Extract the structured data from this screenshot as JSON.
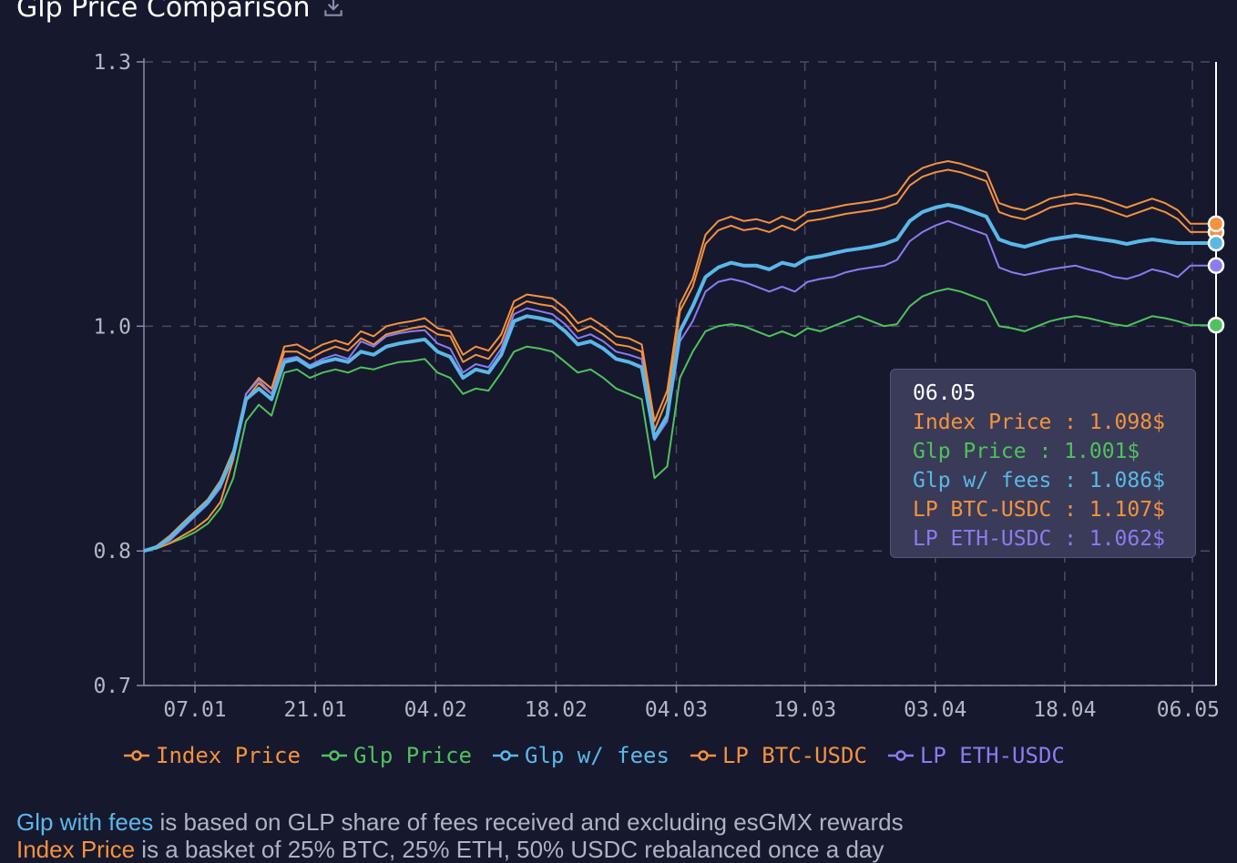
{
  "header": {
    "title": "Glp Price Comparison",
    "download_icon": "download-icon"
  },
  "chart_data": {
    "type": "line",
    "x_ticks": [
      "07.01",
      "21.01",
      "04.02",
      "18.02",
      "04.03",
      "19.03",
      "03.04",
      "18.04",
      "06.05"
    ],
    "y_ticks": [
      "1.3",
      "1.0",
      "0.8",
      "0.7"
    ],
    "y_tick_values": [
      1.3,
      1.0,
      0.8,
      0.7
    ],
    "ylim": [
      0.7,
      1.3
    ],
    "yscale": "log",
    "grid": true,
    "legend_placement": "bottom",
    "x_index": [
      0,
      14,
      28,
      42,
      56,
      70,
      84,
      98,
      112,
      126,
      140,
      154,
      168,
      182,
      196,
      210,
      224,
      238,
      252,
      266,
      280,
      294,
      308,
      322,
      336,
      350,
      364,
      378,
      392,
      406,
      420,
      434,
      448,
      462,
      476,
      490,
      504,
      518,
      532,
      546,
      560,
      574,
      588,
      602,
      616,
      630,
      644,
      658,
      672,
      686,
      700,
      714,
      728,
      742,
      756,
      770,
      784,
      798,
      812,
      826,
      840,
      854,
      868,
      882,
      896,
      910,
      924,
      938,
      952,
      966,
      980,
      994,
      1008,
      1022,
      1036,
      1050,
      1064,
      1078,
      1092,
      1106,
      1120,
      1134,
      1148,
      1162,
      1176
    ],
    "x_tick_index": [
      56,
      188,
      320,
      452,
      584,
      725,
      868,
      1010,
      1150
    ],
    "series": [
      {
        "name": "Index Price",
        "color": "#f5923e",
        "values": [
          0.8,
          0.802,
          0.806,
          0.812,
          0.818,
          0.826,
          0.84,
          0.876,
          0.93,
          0.945,
          0.935,
          0.975,
          0.975,
          0.968,
          0.975,
          0.98,
          0.976,
          0.988,
          0.982,
          0.992,
          0.995,
          0.998,
          1.0,
          0.992,
          0.99,
          0.965,
          0.972,
          0.968,
          0.984,
          1.018,
          1.025,
          1.022,
          1.02,
          1.01,
          0.995,
          1.0,
          0.992,
          0.982,
          0.98,
          0.975,
          0.902,
          0.93,
          1.015,
          1.04,
          1.085,
          1.1,
          1.105,
          1.1,
          1.102,
          1.098,
          1.105,
          1.1,
          1.11,
          1.112,
          1.115,
          1.118,
          1.12,
          1.122,
          1.125,
          1.13,
          1.15,
          1.16,
          1.165,
          1.168,
          1.165,
          1.16,
          1.155,
          1.12,
          1.115,
          1.112,
          1.118,
          1.125,
          1.128,
          1.13,
          1.128,
          1.125,
          1.12,
          1.115,
          1.12,
          1.125,
          1.12,
          1.112,
          1.098,
          1.098,
          1.098
        ]
      },
      {
        "name": "Glp Price",
        "color": "#4fc25c",
        "values": [
          0.8,
          0.802,
          0.806,
          0.81,
          0.815,
          0.822,
          0.835,
          0.86,
          0.91,
          0.925,
          0.915,
          0.955,
          0.958,
          0.95,
          0.955,
          0.958,
          0.955,
          0.96,
          0.958,
          0.962,
          0.965,
          0.966,
          0.968,
          0.955,
          0.95,
          0.935,
          0.94,
          0.938,
          0.955,
          0.975,
          0.98,
          0.978,
          0.975,
          0.965,
          0.955,
          0.958,
          0.95,
          0.94,
          0.935,
          0.93,
          0.86,
          0.87,
          0.95,
          0.975,
          0.995,
          1.0,
          1.002,
          1.0,
          0.995,
          0.99,
          0.995,
          0.99,
          0.998,
          0.995,
          1.0,
          1.005,
          1.01,
          1.005,
          1.0,
          1.002,
          1.02,
          1.03,
          1.035,
          1.038,
          1.035,
          1.03,
          1.025,
          1.0,
          0.998,
          0.995,
          1.0,
          1.005,
          1.008,
          1.01,
          1.008,
          1.005,
          1.002,
          1.0,
          1.005,
          1.01,
          1.008,
          1.005,
          1.001,
          1.001,
          1.001
        ]
      },
      {
        "name": "Glp w/ fees",
        "color": "#5ab8e8",
        "values": [
          0.8,
          0.803,
          0.81,
          0.82,
          0.83,
          0.84,
          0.855,
          0.88,
          0.93,
          0.94,
          0.93,
          0.965,
          0.968,
          0.96,
          0.965,
          0.968,
          0.965,
          0.975,
          0.972,
          0.98,
          0.983,
          0.985,
          0.987,
          0.975,
          0.97,
          0.95,
          0.958,
          0.955,
          0.972,
          1.005,
          1.01,
          1.008,
          1.005,
          0.995,
          0.982,
          0.985,
          0.978,
          0.968,
          0.965,
          0.96,
          0.895,
          0.915,
          0.995,
          1.02,
          1.05,
          1.06,
          1.065,
          1.062,
          1.062,
          1.058,
          1.065,
          1.062,
          1.07,
          1.072,
          1.075,
          1.078,
          1.08,
          1.082,
          1.085,
          1.09,
          1.11,
          1.12,
          1.125,
          1.128,
          1.125,
          1.12,
          1.115,
          1.09,
          1.085,
          1.082,
          1.086,
          1.09,
          1.092,
          1.094,
          1.092,
          1.09,
          1.088,
          1.085,
          1.088,
          1.09,
          1.088,
          1.086,
          1.086,
          1.086,
          1.086
        ]
      },
      {
        "name": "LP BTC-USDC",
        "color": "#f5923e",
        "values": [
          0.8,
          0.804,
          0.812,
          0.822,
          0.832,
          0.842,
          0.858,
          0.884,
          0.935,
          0.95,
          0.94,
          0.98,
          0.982,
          0.975,
          0.982,
          0.986,
          0.982,
          0.995,
          0.99,
          1.0,
          1.003,
          1.005,
          1.008,
          0.998,
          0.995,
          0.972,
          0.98,
          0.976,
          0.992,
          1.025,
          1.032,
          1.03,
          1.028,
          1.018,
          1.003,
          1.008,
          1.0,
          0.99,
          0.988,
          0.982,
          0.91,
          0.938,
          1.022,
          1.048,
          1.095,
          1.11,
          1.115,
          1.11,
          1.112,
          1.108,
          1.115,
          1.11,
          1.12,
          1.122,
          1.125,
          1.128,
          1.13,
          1.132,
          1.135,
          1.14,
          1.16,
          1.17,
          1.175,
          1.178,
          1.175,
          1.17,
          1.165,
          1.13,
          1.125,
          1.122,
          1.128,
          1.135,
          1.138,
          1.14,
          1.138,
          1.135,
          1.13,
          1.125,
          1.13,
          1.135,
          1.13,
          1.122,
          1.107,
          1.107,
          1.107
        ]
      },
      {
        "name": "LP ETH-USDC",
        "color": "#8b7cf0",
        "values": [
          0.8,
          0.803,
          0.808,
          0.818,
          0.828,
          0.838,
          0.852,
          0.878,
          0.935,
          0.948,
          0.935,
          0.968,
          0.97,
          0.962,
          0.968,
          0.972,
          0.968,
          0.985,
          0.98,
          0.99,
          0.993,
          0.995,
          0.996,
          0.983,
          0.978,
          0.955,
          0.963,
          0.96,
          0.978,
          1.012,
          1.018,
          1.015,
          1.012,
          1.002,
          0.988,
          0.992,
          0.985,
          0.975,
          0.972,
          0.968,
          0.893,
          0.91,
          0.985,
          1.005,
          1.035,
          1.045,
          1.048,
          1.045,
          1.04,
          1.035,
          1.04,
          1.035,
          1.045,
          1.048,
          1.05,
          1.055,
          1.058,
          1.06,
          1.062,
          1.068,
          1.088,
          1.098,
          1.105,
          1.11,
          1.105,
          1.1,
          1.095,
          1.06,
          1.055,
          1.052,
          1.055,
          1.058,
          1.06,
          1.062,
          1.058,
          1.055,
          1.05,
          1.048,
          1.052,
          1.058,
          1.055,
          1.05,
          1.062,
          1.062,
          1.062
        ]
      }
    ]
  },
  "tooltip": {
    "date": "06.05",
    "rows": [
      {
        "label": "Index Price : 1.098$",
        "color": "#f5923e"
      },
      {
        "label": "Glp Price : 1.001$",
        "color": "#4fc25c"
      },
      {
        "label": "Glp w/ fees : 1.086$",
        "color": "#5ab8e8"
      },
      {
        "label": "LP BTC-USDC : 1.107$",
        "color": "#f5923e"
      },
      {
        "label": "LP ETH-USDC : 1.062$",
        "color": "#8b7cf0"
      }
    ]
  },
  "legend": [
    {
      "label": "Index Price",
      "color": "#f5923e"
    },
    {
      "label": "Glp Price",
      "color": "#4fc25c"
    },
    {
      "label": "Glp w/ fees",
      "color": "#5ab8e8"
    },
    {
      "label": "LP BTC-USDC",
      "color": "#f5923e"
    },
    {
      "label": "LP ETH-USDC",
      "color": "#8b7cf0"
    }
  ],
  "notes": {
    "line1_highlight": "Glp with fees",
    "line1_rest": " is based on GLP share of fees received and excluding esGMX rewards",
    "line2_highlight": "Index Price",
    "line2_rest": " is a basket of 25% BTC, 25% ETH, 50% USDC rebalanced once a day"
  }
}
